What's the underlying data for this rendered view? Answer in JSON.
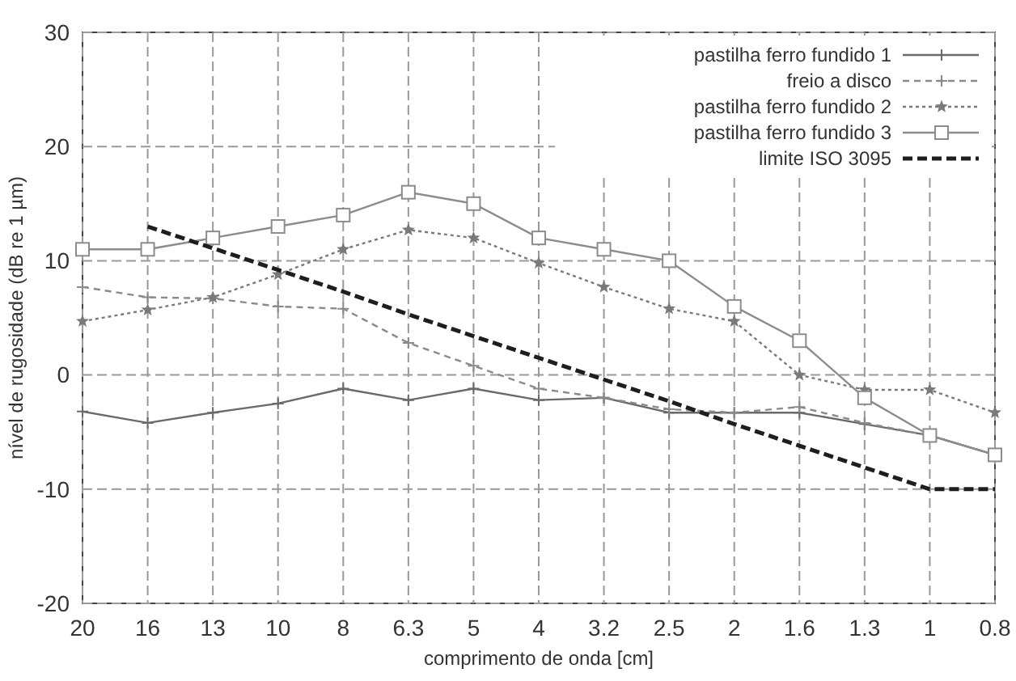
{
  "chart_data": {
    "type": "line",
    "xlabel": "comprimento de onda  [cm]",
    "ylabel": "nível de rugosidade  (dB re 1 µm)",
    "categories": [
      "20",
      "16",
      "13",
      "10",
      "8",
      "6.3",
      "5",
      "4",
      "3.2",
      "2.5",
      "2",
      "1.6",
      "1.3",
      "1",
      "0.8"
    ],
    "ylim": [
      -20,
      30
    ],
    "yticks": [
      -20,
      -10,
      0,
      10,
      20,
      30
    ],
    "grid": true,
    "legend": "top right",
    "series": [
      {
        "name": "pastilha ferro fundido 1",
        "color": "#6a6a6a",
        "marker": "cross",
        "line_style": "solid",
        "values": [
          -3.2,
          -4.2,
          -3.3,
          -2.5,
          -1.2,
          -2.2,
          -1.2,
          -2.2,
          -2,
          -3.3,
          -3.3,
          -3.3,
          -4.3,
          -5.3,
          -7
        ]
      },
      {
        "name": "freio a disco",
        "color": "#8a8a8a",
        "marker": "cross",
        "line_style": "dashed",
        "values": [
          7.7,
          6.8,
          6.7,
          6,
          5.8,
          2.8,
          0.8,
          -1.2,
          -2,
          -3,
          -3.3,
          -2.8,
          -4.2,
          -5.3,
          -7
        ]
      },
      {
        "name": "pastilha ferro fundido 2",
        "color": "#7a7a7a",
        "marker": "star",
        "line_style": "dotted",
        "values": [
          4.7,
          5.7,
          6.8,
          8.8,
          11,
          12.7,
          12,
          9.8,
          7.7,
          5.8,
          4.7,
          0,
          -1.3,
          -1.3,
          -3.3
        ]
      },
      {
        "name": "pastilha ferro fundido 3",
        "color": "#8c8c8c",
        "marker": "square",
        "line_style": "solid",
        "values": [
          11,
          11,
          12,
          13,
          14,
          16,
          15,
          12,
          11,
          10,
          6,
          3,
          -2,
          -5.3,
          -7
        ]
      },
      {
        "name": "limite ISO 3095",
        "color": "#1e1e1e",
        "marker": "none",
        "line_style": "dashed",
        "values": [
          null,
          13,
          11.1,
          9.2,
          7.3,
          5.3,
          3.4,
          1.5,
          -0.4,
          -2.3,
          -4.3,
          -6.2,
          -8.1,
          -10,
          -10
        ]
      }
    ]
  }
}
